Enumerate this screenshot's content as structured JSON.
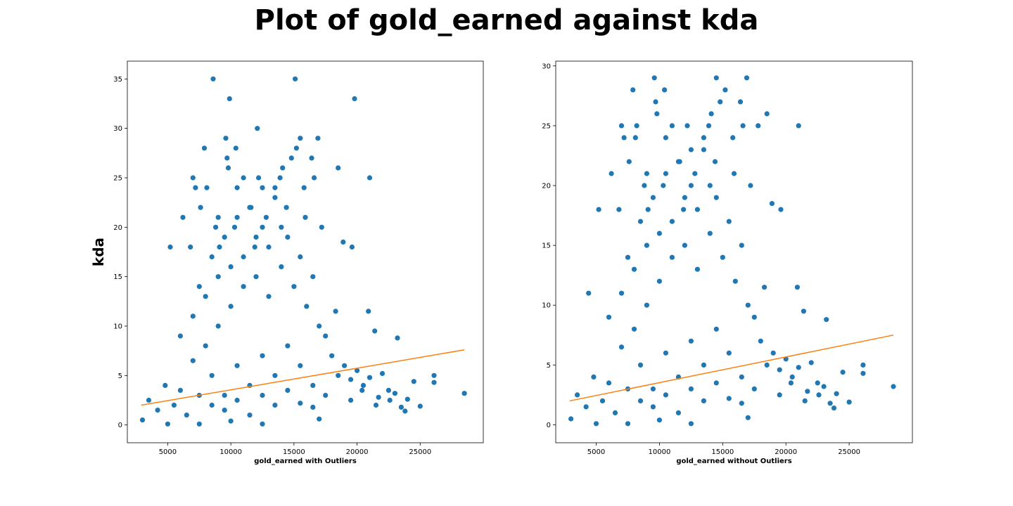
{
  "figure": {
    "suptitle": "Plot of gold_earned against kda"
  },
  "colors": {
    "points": "#1f77b4",
    "trend": "#ff7f0e",
    "frame": "#000000"
  },
  "chart_data": [
    {
      "type": "scatter",
      "title": "",
      "xlabel": "gold_earned with Outliers",
      "ylabel": "kda",
      "xlim": [
        1800,
        30000
      ],
      "ylim": [
        -1.8,
        36.8
      ],
      "xticks": [
        5000,
        10000,
        15000,
        20000,
        25000
      ],
      "yticks": [
        0,
        5,
        10,
        15,
        20,
        25,
        30,
        35
      ],
      "grid": false,
      "trend_line": {
        "x": [
          2900,
          28500
        ],
        "y": [
          2.0,
          7.6
        ]
      },
      "points": [
        [
          8600,
          35
        ],
        [
          15100,
          35
        ],
        [
          9900,
          33
        ],
        [
          19800,
          33
        ],
        [
          12100,
          30
        ],
        [
          9600,
          29
        ],
        [
          15500,
          29
        ],
        [
          16900,
          29
        ],
        [
          7900,
          28
        ],
        [
          10400,
          28
        ],
        [
          15200,
          28
        ],
        [
          9700,
          27
        ],
        [
          14800,
          27
        ],
        [
          16400,
          27
        ],
        [
          9800,
          26
        ],
        [
          14100,
          26
        ],
        [
          18500,
          26
        ],
        [
          21000,
          25
        ],
        [
          7000,
          25
        ],
        [
          11000,
          25
        ],
        [
          12200,
          25
        ],
        [
          13900,
          25
        ],
        [
          16600,
          25
        ],
        [
          7200,
          24
        ],
        [
          8100,
          24
        ],
        [
          10500,
          24
        ],
        [
          13500,
          24
        ],
        [
          15800,
          24
        ],
        [
          6200,
          21
        ],
        [
          9000,
          21
        ],
        [
          12800,
          21
        ],
        [
          15900,
          21
        ],
        [
          7600,
          22
        ],
        [
          11600,
          22
        ],
        [
          14400,
          22
        ],
        [
          17200,
          20
        ],
        [
          8800,
          20
        ],
        [
          10300,
          20
        ],
        [
          12500,
          20
        ],
        [
          5200,
          18
        ],
        [
          19600,
          18
        ],
        [
          6800,
          18
        ],
        [
          9100,
          18
        ],
        [
          11900,
          18
        ],
        [
          18900,
          18.5
        ],
        [
          18300,
          11.5
        ],
        [
          20900,
          11.5
        ],
        [
          21400,
          9.5
        ],
        [
          23200,
          8.8
        ],
        [
          26100,
          5
        ],
        [
          26100,
          4.3
        ],
        [
          28500,
          3.2
        ],
        [
          24500,
          4.4
        ],
        [
          23800,
          1.4
        ],
        [
          22600,
          2.5
        ],
        [
          21700,
          2.8
        ],
        [
          20400,
          3.5
        ],
        [
          19500,
          4.6
        ],
        [
          17000,
          0.6
        ],
        [
          12500,
          0.1
        ],
        [
          10000,
          0.4
        ],
        [
          7500,
          0.1
        ],
        [
          5000,
          0.1
        ],
        [
          3000,
          0.5
        ],
        [
          3500,
          2.5
        ],
        [
          4200,
          1.5
        ],
        [
          4800,
          4
        ],
        [
          6000,
          3.5
        ],
        [
          7000,
          6.5
        ],
        [
          8000,
          8
        ],
        [
          9000,
          10
        ],
        [
          10000,
          12
        ],
        [
          11000,
          14
        ],
        [
          12000,
          15
        ],
        [
          13000,
          13
        ],
        [
          14000,
          16
        ],
        [
          15000,
          14
        ],
        [
          16000,
          12
        ],
        [
          17000,
          10
        ],
        [
          8500,
          5
        ],
        [
          9500,
          3
        ],
        [
          10500,
          6
        ],
        [
          11500,
          4
        ],
        [
          12500,
          7
        ],
        [
          13500,
          5
        ],
        [
          14500,
          8
        ],
        [
          15500,
          6
        ],
        [
          16500,
          4
        ],
        [
          17500,
          3
        ],
        [
          18500,
          5
        ],
        [
          19500,
          2.5
        ],
        [
          20500,
          4
        ],
        [
          21500,
          2
        ],
        [
          22500,
          3.5
        ],
        [
          23500,
          1.8
        ],
        [
          5500,
          2
        ],
        [
          6500,
          1
        ],
        [
          7500,
          3
        ],
        [
          8500,
          2
        ],
        [
          9500,
          1.5
        ],
        [
          10500,
          2.5
        ],
        [
          11500,
          1
        ],
        [
          12500,
          3
        ],
        [
          13500,
          2
        ],
        [
          14500,
          3.5
        ],
        [
          15500,
          2.2
        ],
        [
          16500,
          1.8
        ],
        [
          6000,
          9
        ],
        [
          7000,
          11
        ],
        [
          8000,
          13
        ],
        [
          9000,
          15
        ],
        [
          10000,
          16
        ],
        [
          11000,
          17
        ],
        [
          12000,
          19
        ],
        [
          13000,
          18
        ],
        [
          14000,
          20
        ],
        [
          7500,
          14
        ],
        [
          8500,
          17
        ],
        [
          9500,
          19
        ],
        [
          10500,
          21
        ],
        [
          11500,
          22
        ],
        [
          12500,
          24
        ],
        [
          13500,
          23
        ],
        [
          14500,
          19
        ],
        [
          15500,
          17
        ],
        [
          16500,
          15
        ],
        [
          17500,
          9
        ],
        [
          18000,
          7
        ],
        [
          19000,
          6
        ],
        [
          20000,
          5.5
        ],
        [
          21000,
          4.8
        ],
        [
          22000,
          5.2
        ],
        [
          23000,
          3.2
        ],
        [
          24000,
          2.6
        ],
        [
          25000,
          1.9
        ]
      ]
    },
    {
      "type": "scatter",
      "title": "",
      "xlabel": "gold_earned without Outliers",
      "ylabel": "",
      "xlim": [
        1800,
        30000
      ],
      "ylim": [
        -1.5,
        30.4
      ],
      "xticks": [
        5000,
        10000,
        15000,
        20000,
        25000
      ],
      "yticks": [
        0,
        5,
        10,
        15,
        20,
        25,
        30
      ],
      "grid": false,
      "trend_line": {
        "x": [
          2900,
          28500
        ],
        "y": [
          2.0,
          7.5
        ]
      },
      "points": [
        [
          9600,
          29
        ],
        [
          14500,
          29
        ],
        [
          16900,
          29
        ],
        [
          7900,
          28
        ],
        [
          10400,
          28
        ],
        [
          15200,
          28
        ],
        [
          9700,
          27
        ],
        [
          14800,
          27
        ],
        [
          16400,
          27
        ],
        [
          9800,
          26
        ],
        [
          14100,
          26
        ],
        [
          18500,
          26
        ],
        [
          21000,
          25
        ],
        [
          7000,
          25
        ],
        [
          8200,
          25
        ],
        [
          11000,
          25
        ],
        [
          12200,
          25
        ],
        [
          13900,
          25
        ],
        [
          16600,
          25
        ],
        [
          17800,
          25
        ],
        [
          7200,
          24
        ],
        [
          8100,
          24
        ],
        [
          10500,
          24
        ],
        [
          13500,
          24
        ],
        [
          15800,
          24
        ],
        [
          6200,
          21
        ],
        [
          9000,
          21
        ],
        [
          12800,
          21
        ],
        [
          15900,
          21
        ],
        [
          7600,
          22
        ],
        [
          11600,
          22
        ],
        [
          14400,
          22
        ],
        [
          17200,
          20
        ],
        [
          8800,
          20
        ],
        [
          10300,
          20
        ],
        [
          12500,
          20
        ],
        [
          5200,
          18
        ],
        [
          19600,
          18
        ],
        [
          6800,
          18
        ],
        [
          9100,
          18
        ],
        [
          11900,
          18
        ],
        [
          18900,
          18.5
        ],
        [
          18300,
          11.5
        ],
        [
          20900,
          11.5
        ],
        [
          21400,
          9.5
        ],
        [
          23200,
          8.8
        ],
        [
          26100,
          5
        ],
        [
          26100,
          4.3
        ],
        [
          28500,
          3.2
        ],
        [
          24500,
          4.4
        ],
        [
          23800,
          1.4
        ],
        [
          22600,
          2.5
        ],
        [
          21700,
          2.8
        ],
        [
          20400,
          3.5
        ],
        [
          19500,
          4.6
        ],
        [
          17000,
          0.6
        ],
        [
          12500,
          0.1
        ],
        [
          10000,
          0.4
        ],
        [
          7500,
          0.1
        ],
        [
          5000,
          0.1
        ],
        [
          3000,
          0.5
        ],
        [
          3500,
          2.5
        ],
        [
          4200,
          1.5
        ],
        [
          4400,
          11
        ],
        [
          4800,
          4
        ],
        [
          6000,
          3.5
        ],
        [
          7000,
          6.5
        ],
        [
          8000,
          8
        ],
        [
          9000,
          10
        ],
        [
          10000,
          12
        ],
        [
          11000,
          14
        ],
        [
          12000,
          15
        ],
        [
          13000,
          13
        ],
        [
          14000,
          16
        ],
        [
          15000,
          14
        ],
        [
          16000,
          12
        ],
        [
          17000,
          10
        ],
        [
          8500,
          5
        ],
        [
          9500,
          3
        ],
        [
          10500,
          6
        ],
        [
          11500,
          4
        ],
        [
          12500,
          7
        ],
        [
          13500,
          5
        ],
        [
          14500,
          8
        ],
        [
          15500,
          6
        ],
        [
          16500,
          4
        ],
        [
          17500,
          3
        ],
        [
          18500,
          5
        ],
        [
          19500,
          2.5
        ],
        [
          20500,
          4
        ],
        [
          21500,
          2
        ],
        [
          22500,
          3.5
        ],
        [
          23500,
          1.8
        ],
        [
          5500,
          2
        ],
        [
          6500,
          1
        ],
        [
          7500,
          3
        ],
        [
          8500,
          2
        ],
        [
          9500,
          1.5
        ],
        [
          10500,
          2.5
        ],
        [
          11500,
          1
        ],
        [
          12500,
          3
        ],
        [
          13500,
          2
        ],
        [
          14500,
          3.5
        ],
        [
          15500,
          2.2
        ],
        [
          16500,
          1.8
        ],
        [
          6000,
          9
        ],
        [
          7000,
          11
        ],
        [
          8000,
          13
        ],
        [
          9000,
          15
        ],
        [
          10000,
          16
        ],
        [
          11000,
          17
        ],
        [
          12000,
          19
        ],
        [
          13000,
          18
        ],
        [
          14000,
          20
        ],
        [
          7500,
          14
        ],
        [
          8500,
          17
        ],
        [
          9500,
          19
        ],
        [
          10500,
          21
        ],
        [
          11500,
          22
        ],
        [
          12500,
          23
        ],
        [
          13500,
          23
        ],
        [
          14500,
          19
        ],
        [
          15500,
          17
        ],
        [
          16500,
          15
        ],
        [
          17500,
          9
        ],
        [
          18000,
          7
        ],
        [
          19000,
          6
        ],
        [
          20000,
          5.5
        ],
        [
          21000,
          4.8
        ],
        [
          22000,
          5.2
        ],
        [
          23000,
          3.2
        ],
        [
          24000,
          2.6
        ],
        [
          25000,
          1.9
        ]
      ]
    }
  ]
}
